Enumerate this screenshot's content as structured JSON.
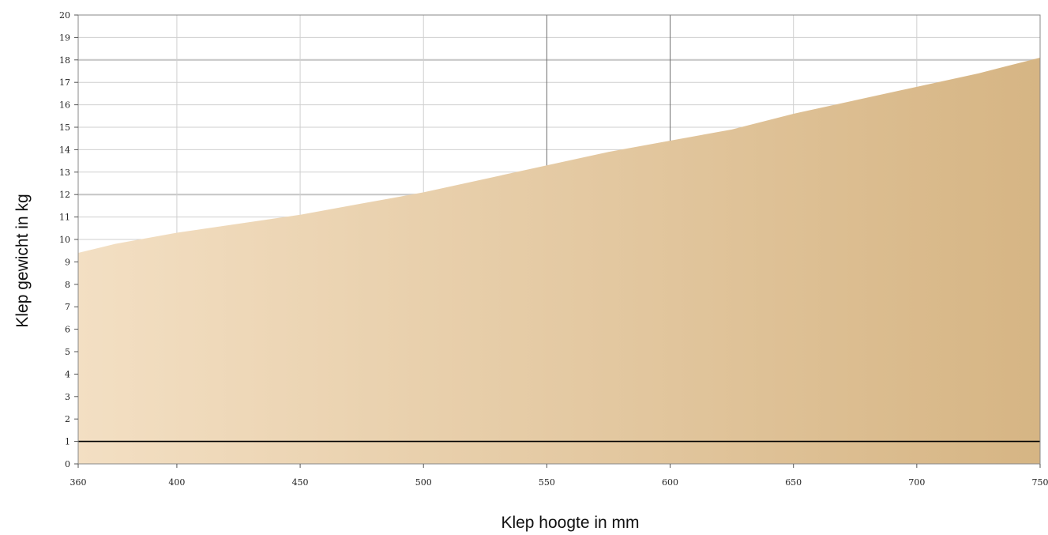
{
  "chart_data": {
    "type": "area",
    "title": "",
    "xlabel": "Klep hoogte in mm",
    "ylabel": "Klep gewicht in kg",
    "xlim": [
      360,
      750
    ],
    "ylim": [
      0,
      20
    ],
    "x_ticks": [
      360,
      400,
      450,
      500,
      550,
      600,
      650,
      700,
      750
    ],
    "y_ticks": [
      0,
      1,
      2,
      3,
      4,
      5,
      6,
      7,
      8,
      9,
      10,
      11,
      12,
      13,
      14,
      15,
      16,
      17,
      18,
      19,
      20
    ],
    "grid": true,
    "legend": "none",
    "baseline": 1,
    "series": [
      {
        "x": [
          360,
          375,
          400,
          425,
          450,
          475,
          500,
          525,
          550,
          575,
          600,
          625,
          650,
          675,
          700,
          725,
          750
        ],
        "values": [
          9.4,
          9.8,
          10.3,
          10.7,
          11.1,
          11.6,
          12.1,
          12.7,
          13.3,
          13.9,
          14.4,
          14.9,
          15.6,
          16.2,
          16.8,
          17.4,
          18.1
        ]
      }
    ],
    "colors": {
      "fill_start": "#f3dfc3",
      "fill_end": "#d6b584",
      "baseline": "#000000",
      "grid_light": "#cfcfcf",
      "grid_dark": "#6e6e6e"
    }
  }
}
